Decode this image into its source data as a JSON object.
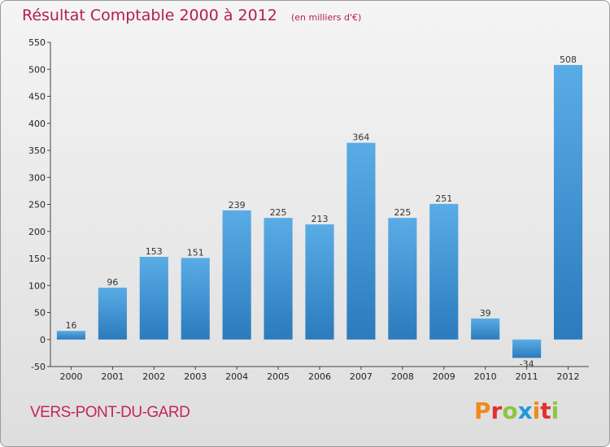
{
  "header": {
    "title": "Résultat Comptable 2000 à 2012",
    "subtitle": "(en milliers d'€)"
  },
  "footer": {
    "location": "VERS-PONT-DU-GARD",
    "logo_text": "Proxiti"
  },
  "colors": {
    "accent": "#b31d52",
    "bar_top": "#5aace6",
    "bar_bottom": "#2b7bbd",
    "logo_letters": [
      "#f08a1c",
      "#e2302f",
      "#8ec63f",
      "#1f9bd7",
      "#f08a1c",
      "#e2302f",
      "#8ec63f"
    ]
  },
  "chart_data": {
    "type": "bar",
    "categories": [
      "2000",
      "2001",
      "2002",
      "2003",
      "2004",
      "2005",
      "2006",
      "2007",
      "2008",
      "2009",
      "2010",
      "2011",
      "2012"
    ],
    "values": [
      16,
      96,
      153,
      151,
      239,
      225,
      213,
      364,
      225,
      251,
      39,
      -34,
      508
    ],
    "ylim": [
      -50,
      550
    ],
    "yticks": [
      -50,
      0,
      50,
      100,
      150,
      200,
      250,
      300,
      350,
      400,
      450,
      500,
      550
    ],
    "grid": false,
    "data_labels": true
  }
}
